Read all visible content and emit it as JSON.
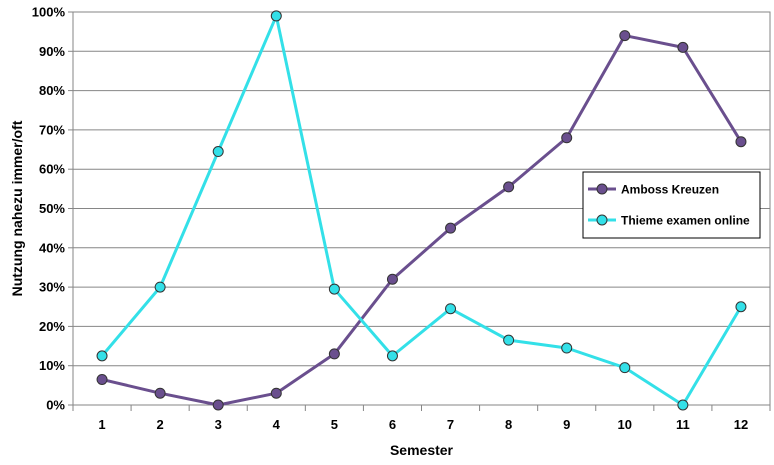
{
  "chart_data": {
    "type": "line",
    "xlabel": "Semester",
    "ylabel": "Nutzung nahezu immer/oft",
    "categories": [
      "1",
      "2",
      "3",
      "4",
      "5",
      "6",
      "7",
      "8",
      "9",
      "10",
      "11",
      "12"
    ],
    "y_ticks": [
      "0%",
      "10%",
      "20%",
      "30%",
      "40%",
      "50%",
      "60%",
      "70%",
      "80%",
      "90%",
      "100%"
    ],
    "ylim": [
      0,
      100
    ],
    "grid": true,
    "legend_position": "right",
    "series": [
      {
        "name": "Amboss Kreuzen",
        "color": "#6a4f8e",
        "values": [
          6.5,
          3,
          0,
          3,
          13,
          32,
          45,
          55.5,
          68,
          94,
          91,
          67
        ]
      },
      {
        "name": "Thieme examen online",
        "color": "#33e0e8",
        "values": [
          12.5,
          30,
          64.5,
          99,
          29.5,
          12.5,
          24.5,
          16.5,
          14.5,
          9.5,
          0,
          25
        ]
      }
    ]
  }
}
